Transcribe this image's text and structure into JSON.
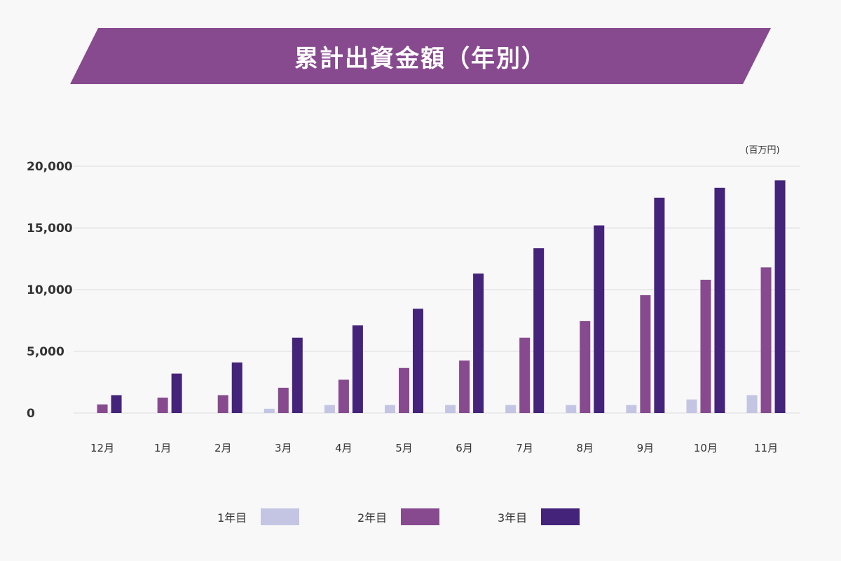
{
  "chart_data": {
    "type": "bar",
    "title": "累計出資金額（年別）",
    "unit_label": "(百万円)",
    "categories": [
      "12月",
      "1月",
      "2月",
      "3月",
      "4月",
      "5月",
      "6月",
      "7月",
      "8月",
      "9月",
      "10月",
      "11月"
    ],
    "series": [
      {
        "name": "1年目",
        "color": "#c3c5e3",
        "values": [
          0,
          0,
          0,
          350,
          650,
          650,
          650,
          650,
          650,
          650,
          1100,
          1450
        ]
      },
      {
        "name": "2年目",
        "color": "#874a8f",
        "values": [
          700,
          1250,
          1450,
          2050,
          2700,
          3650,
          4250,
          6100,
          7450,
          9550,
          10800,
          11800
        ]
      },
      {
        "name": "3年目",
        "color": "#44237a",
        "values": [
          1450,
          3200,
          4100,
          6100,
          7100,
          8450,
          11300,
          13350,
          15200,
          17450,
          18250,
          18850
        ]
      }
    ],
    "yticks": [
      0,
      5000,
      10000,
      15000,
      20000
    ],
    "ytick_labels": [
      "0",
      "5,000",
      "10,000",
      "15,000",
      "20,000"
    ],
    "ylim": [
      0,
      20000
    ],
    "grid": true,
    "legend_position": "bottom-center"
  },
  "colors": {
    "banner": "#874a8f",
    "grid": "#dddddd",
    "background": "#f8f8f9"
  }
}
